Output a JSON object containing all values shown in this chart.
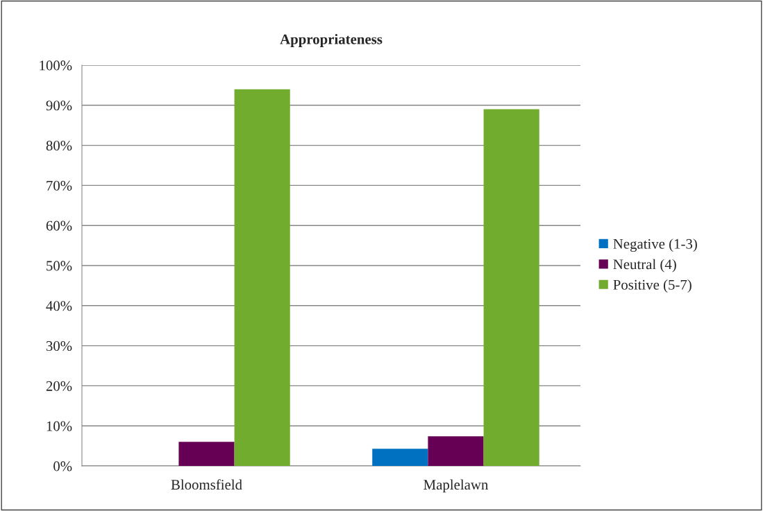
{
  "chart_data": {
    "type": "bar",
    "title": "Appropriateness",
    "categories": [
      "Bloomsfield",
      "Maplelawn"
    ],
    "series": [
      {
        "name": "Negative (1-3)",
        "color": "#0070c0",
        "values": [
          0,
          4.3
        ]
      },
      {
        "name": "Neutral (4)",
        "color": "#660055",
        "values": [
          6,
          7.4
        ]
      },
      {
        "name": "Positive (5-7)",
        "color": "#71ac2f",
        "values": [
          94,
          89
        ]
      }
    ],
    "ylim": [
      0,
      100
    ],
    "yticks": [
      {
        "value": 0,
        "label": "0%"
      },
      {
        "value": 10,
        "label": "10%"
      },
      {
        "value": 20,
        "label": "20%"
      },
      {
        "value": 30,
        "label": "30%"
      },
      {
        "value": 40,
        "label": "40%"
      },
      {
        "value": 50,
        "label": "50%"
      },
      {
        "value": 60,
        "label": "60%"
      },
      {
        "value": 70,
        "label": "70%"
      },
      {
        "value": 80,
        "label": "80%"
      },
      {
        "value": 90,
        "label": "90%"
      },
      {
        "value": 100,
        "label": "100%"
      }
    ],
    "grid": "y",
    "legend": "right"
  }
}
